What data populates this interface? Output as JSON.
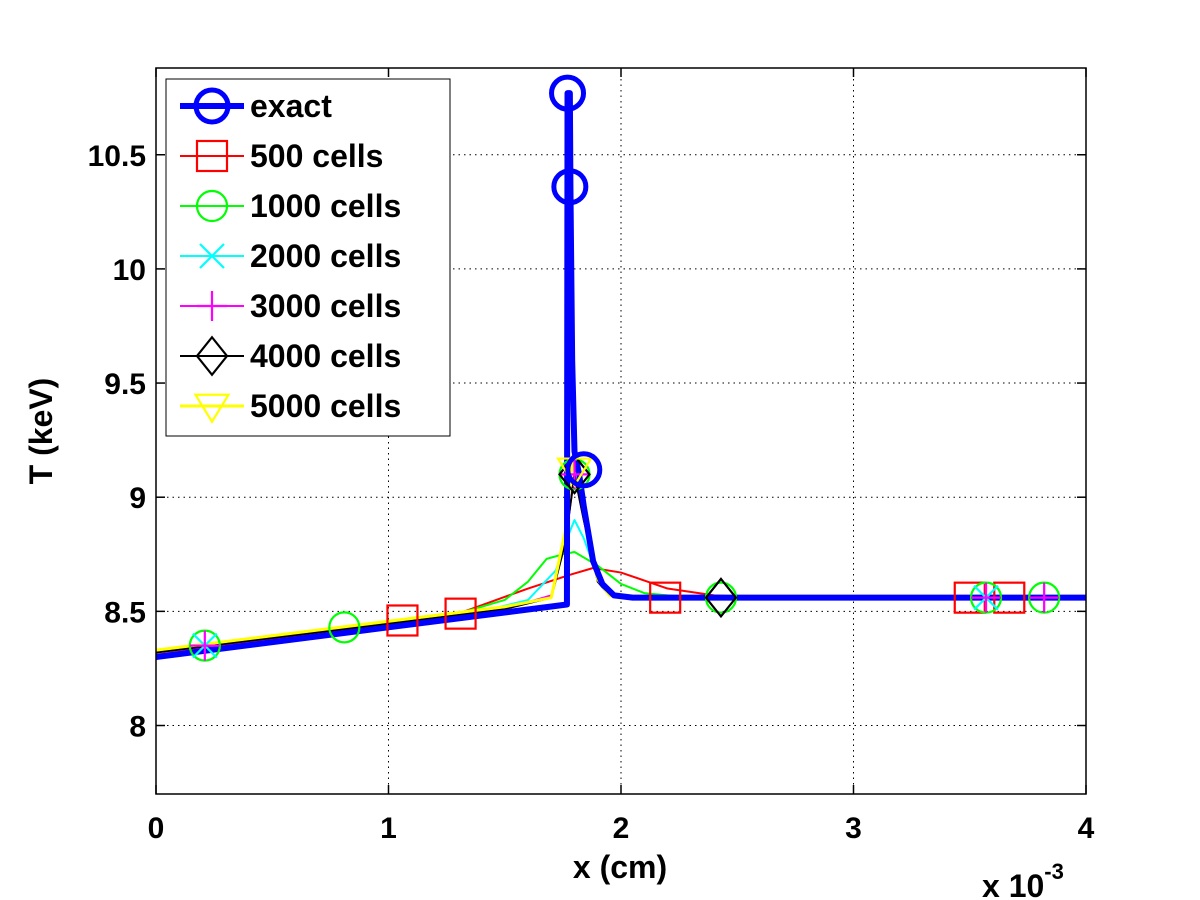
{
  "chart_data": {
    "type": "line",
    "xlabel": "x (cm)",
    "ylabel": "T (keV)",
    "x_exponent_label": "x 10",
    "x_exponent_power": "-3",
    "x_scale": 0.001,
    "xlim": [
      0,
      0.004
    ],
    "ylim": [
      7.7,
      10.88
    ],
    "xticks": [
      0,
      0.001,
      0.002,
      0.003,
      0.004
    ],
    "xtick_labels": [
      "0",
      "1",
      "2",
      "3",
      "4"
    ],
    "yticks": [
      8,
      8.5,
      9,
      9.5,
      10,
      10.5
    ],
    "ytick_labels": [
      "8",
      "8.5",
      "9",
      "9.5",
      "10",
      "10.5"
    ],
    "grid": true,
    "legend_position": "top-left",
    "series": [
      {
        "name": "exact",
        "color": "#0000ff",
        "marker": "circle",
        "line_width": 6,
        "points": [
          [
            0,
            8.3
          ],
          [
            0.0017675,
            8.53
          ],
          [
            0.00177,
            10.77
          ],
          [
            0.00178,
            10.77
          ],
          [
            0.0017825,
            10.36
          ],
          [
            0.00179,
            9.6
          ],
          [
            0.0018,
            9.2
          ],
          [
            0.00182,
            9.1
          ],
          [
            0.00184,
            8.96
          ],
          [
            0.00188,
            8.72
          ],
          [
            0.00192,
            8.62
          ],
          [
            0.00197,
            8.57
          ],
          [
            0.00205,
            8.56
          ],
          [
            0.004,
            8.56
          ]
        ],
        "markers": [
          [
            0.00177,
            10.77
          ],
          [
            0.00178,
            10.36
          ],
          [
            0.00184,
            9.12
          ]
        ]
      },
      {
        "name": "500 cells",
        "color": "#ff0000",
        "marker": "square",
        "line_width": 2,
        "points": [
          [
            0,
            8.31
          ],
          [
            0.001,
            8.45
          ],
          [
            0.0013,
            8.49
          ],
          [
            0.0016,
            8.6
          ],
          [
            0.00178,
            8.66
          ],
          [
            0.00188,
            8.69
          ],
          [
            0.002,
            8.67
          ],
          [
            0.0022,
            8.6
          ],
          [
            0.0024,
            8.57
          ],
          [
            0.0026,
            8.56
          ],
          [
            0.004,
            8.56
          ]
        ],
        "markers": [
          [
            0.00106,
            8.46
          ],
          [
            0.00131,
            8.49
          ],
          [
            0.00219,
            8.56
          ],
          [
            0.0035,
            8.56
          ],
          [
            0.00367,
            8.56
          ]
        ]
      },
      {
        "name": "1000 cells",
        "color": "#00ff00",
        "marker": "circle",
        "line_width": 2,
        "points": [
          [
            0,
            8.32
          ],
          [
            0.0013,
            8.49
          ],
          [
            0.0015,
            8.55
          ],
          [
            0.0016,
            8.63
          ],
          [
            0.00168,
            8.73
          ],
          [
            0.00175,
            8.75
          ],
          [
            0.0018,
            8.76
          ],
          [
            0.0019,
            8.7
          ],
          [
            0.002,
            8.62
          ],
          [
            0.0021,
            8.58
          ],
          [
            0.0023,
            8.56
          ],
          [
            0.004,
            8.56
          ]
        ],
        "markers": [
          [
            0.00021,
            8.35
          ],
          [
            0.00081,
            8.43
          ],
          [
            0.0018,
            9.1
          ],
          [
            0.00243,
            8.56
          ],
          [
            0.00357,
            8.56
          ],
          [
            0.00382,
            8.56
          ]
        ]
      },
      {
        "name": "2000 cells",
        "color": "#00ffff",
        "marker": "x",
        "line_width": 2,
        "points": [
          [
            0,
            8.33
          ],
          [
            0.0014,
            8.5
          ],
          [
            0.0016,
            8.55
          ],
          [
            0.00172,
            8.68
          ],
          [
            0.00178,
            8.85
          ],
          [
            0.0018,
            8.9
          ],
          [
            0.00184,
            8.82
          ],
          [
            0.0019,
            8.65
          ],
          [
            0.00196,
            8.57
          ],
          [
            0.002,
            8.56
          ],
          [
            0.004,
            8.56
          ]
        ],
        "markers": [
          [
            0.00021,
            8.35
          ],
          [
            0.00357,
            8.56
          ]
        ]
      },
      {
        "name": "3000 cells",
        "color": "#ff00ff",
        "marker": "plus",
        "line_width": 2,
        "points": [
          [
            0,
            8.31
          ],
          [
            0.0015,
            8.51
          ],
          [
            0.0017,
            8.57
          ],
          [
            0.00176,
            8.8
          ],
          [
            0.0018,
            9.1
          ],
          [
            0.00184,
            8.9
          ],
          [
            0.0019,
            8.64
          ],
          [
            0.00195,
            8.57
          ],
          [
            0.002,
            8.56
          ],
          [
            0.004,
            8.56
          ]
        ],
        "markers": [
          [
            0.00021,
            8.35
          ],
          [
            0.0018,
            9.1
          ],
          [
            0.00357,
            8.56
          ],
          [
            0.00382,
            8.56
          ]
        ]
      },
      {
        "name": "4000 cells",
        "color": "#000000",
        "marker": "diamond",
        "line_width": 2,
        "points": [
          [
            0,
            8.32
          ],
          [
            0.0015,
            8.51
          ],
          [
            0.0017,
            8.56
          ],
          [
            0.00176,
            8.8
          ],
          [
            0.0018,
            9.1
          ],
          [
            0.00184,
            8.9
          ],
          [
            0.0019,
            8.63
          ],
          [
            0.00195,
            8.57
          ],
          [
            0.002,
            8.56
          ],
          [
            0.004,
            8.56
          ]
        ],
        "markers": [
          [
            0.0018,
            9.1
          ],
          [
            0.00243,
            8.56
          ]
        ]
      },
      {
        "name": "5000 cells",
        "color": "#ffff00",
        "marker": "triangle-down",
        "line_width": 3,
        "points": [
          [
            0,
            8.33
          ],
          [
            0.0015,
            8.52
          ],
          [
            0.0017,
            8.56
          ],
          [
            0.00176,
            8.85
          ],
          [
            0.0018,
            9.24
          ],
          [
            0.00184,
            8.95
          ],
          [
            0.0019,
            8.64
          ],
          [
            0.00195,
            8.57
          ],
          [
            0.002,
            8.56
          ],
          [
            0.004,
            8.56
          ]
        ],
        "markers": [
          [
            0.0018,
            9.12
          ]
        ]
      }
    ]
  }
}
